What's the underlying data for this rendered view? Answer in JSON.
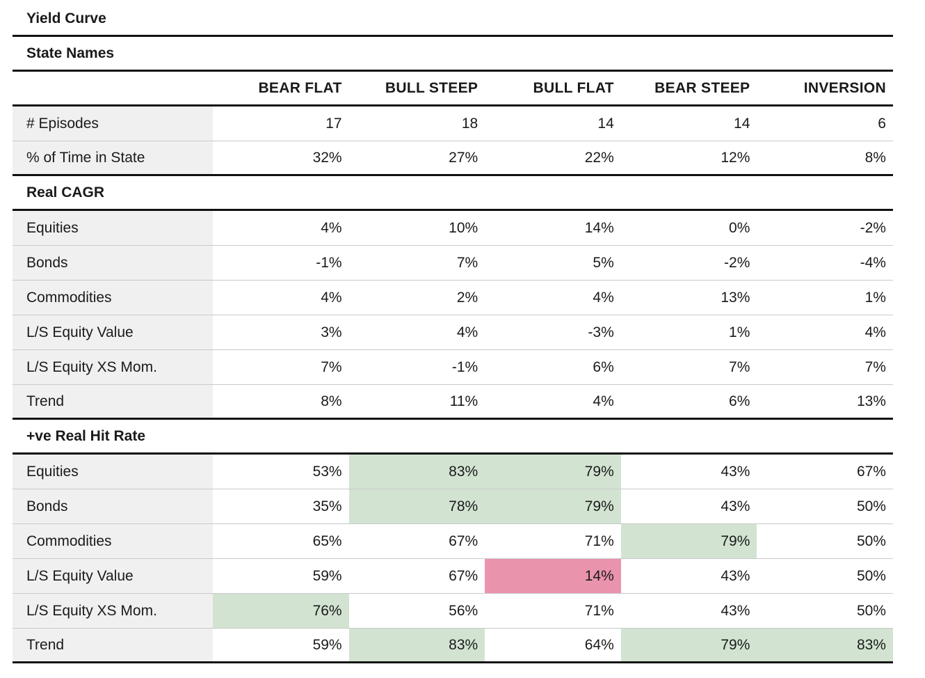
{
  "table": {
    "title": "Yield Curve",
    "state_names_label": "State Names",
    "columns": [
      "BEAR FLAT",
      "BULL STEEP",
      "BULL FLAT",
      "BEAR STEEP",
      "INVERSION"
    ],
    "overview_rows": [
      {
        "label": "# Episodes",
        "values": [
          "17",
          "18",
          "14",
          "14",
          "6"
        ],
        "highlights": [
          "",
          "",
          "",
          "",
          ""
        ]
      },
      {
        "label": "% of Time in State",
        "values": [
          "32%",
          "27%",
          "22%",
          "12%",
          "8%"
        ],
        "highlights": [
          "",
          "",
          "",
          "",
          ""
        ]
      }
    ],
    "sections": [
      {
        "title": "Real CAGR",
        "rows": [
          {
            "label": "Equities",
            "values": [
              "4%",
              "10%",
              "14%",
              "0%",
              "-2%"
            ],
            "highlights": [
              "",
              "",
              "",
              "",
              ""
            ]
          },
          {
            "label": "Bonds",
            "values": [
              "-1%",
              "7%",
              "5%",
              "-2%",
              "-4%"
            ],
            "highlights": [
              "",
              "",
              "",
              "",
              ""
            ]
          },
          {
            "label": "Commodities",
            "values": [
              "4%",
              "2%",
              "4%",
              "13%",
              "1%"
            ],
            "highlights": [
              "",
              "",
              "",
              "",
              ""
            ]
          },
          {
            "label": "L/S Equity Value",
            "values": [
              "3%",
              "4%",
              "-3%",
              "1%",
              "4%"
            ],
            "highlights": [
              "",
              "",
              "",
              "",
              ""
            ]
          },
          {
            "label": "L/S Equity XS Mom.",
            "values": [
              "7%",
              "-1%",
              "6%",
              "7%",
              "7%"
            ],
            "highlights": [
              "",
              "",
              "",
              "",
              ""
            ]
          },
          {
            "label": "Trend",
            "values": [
              "8%",
              "11%",
              "4%",
              "6%",
              "13%"
            ],
            "highlights": [
              "",
              "",
              "",
              "",
              ""
            ]
          }
        ]
      },
      {
        "title": "+ve Real Hit Rate",
        "rows": [
          {
            "label": "Equities",
            "values": [
              "53%",
              "83%",
              "79%",
              "43%",
              "67%"
            ],
            "highlights": [
              "",
              "green",
              "green",
              "",
              ""
            ]
          },
          {
            "label": "Bonds",
            "values": [
              "35%",
              "78%",
              "79%",
              "43%",
              "50%"
            ],
            "highlights": [
              "",
              "green",
              "green",
              "",
              ""
            ]
          },
          {
            "label": "Commodities",
            "values": [
              "65%",
              "67%",
              "71%",
              "79%",
              "50%"
            ],
            "highlights": [
              "",
              "",
              "",
              "green",
              ""
            ]
          },
          {
            "label": "L/S Equity Value",
            "values": [
              "59%",
              "67%",
              "14%",
              "43%",
              "50%"
            ],
            "highlights": [
              "",
              "",
              "pink",
              "",
              ""
            ]
          },
          {
            "label": "L/S Equity XS Mom.",
            "values": [
              "76%",
              "56%",
              "71%",
              "43%",
              "50%"
            ],
            "highlights": [
              "green",
              "",
              "",
              "",
              ""
            ]
          },
          {
            "label": "Trend",
            "values": [
              "59%",
              "83%",
              "64%",
              "79%",
              "83%"
            ],
            "highlights": [
              "",
              "green",
              "",
              "green",
              "green"
            ]
          }
        ]
      }
    ]
  },
  "colors": {
    "highlight_green": "#d2e3d2",
    "highlight_pink": "#ea93ad",
    "label_background": "#f1f0f0",
    "rule": "#111111"
  }
}
